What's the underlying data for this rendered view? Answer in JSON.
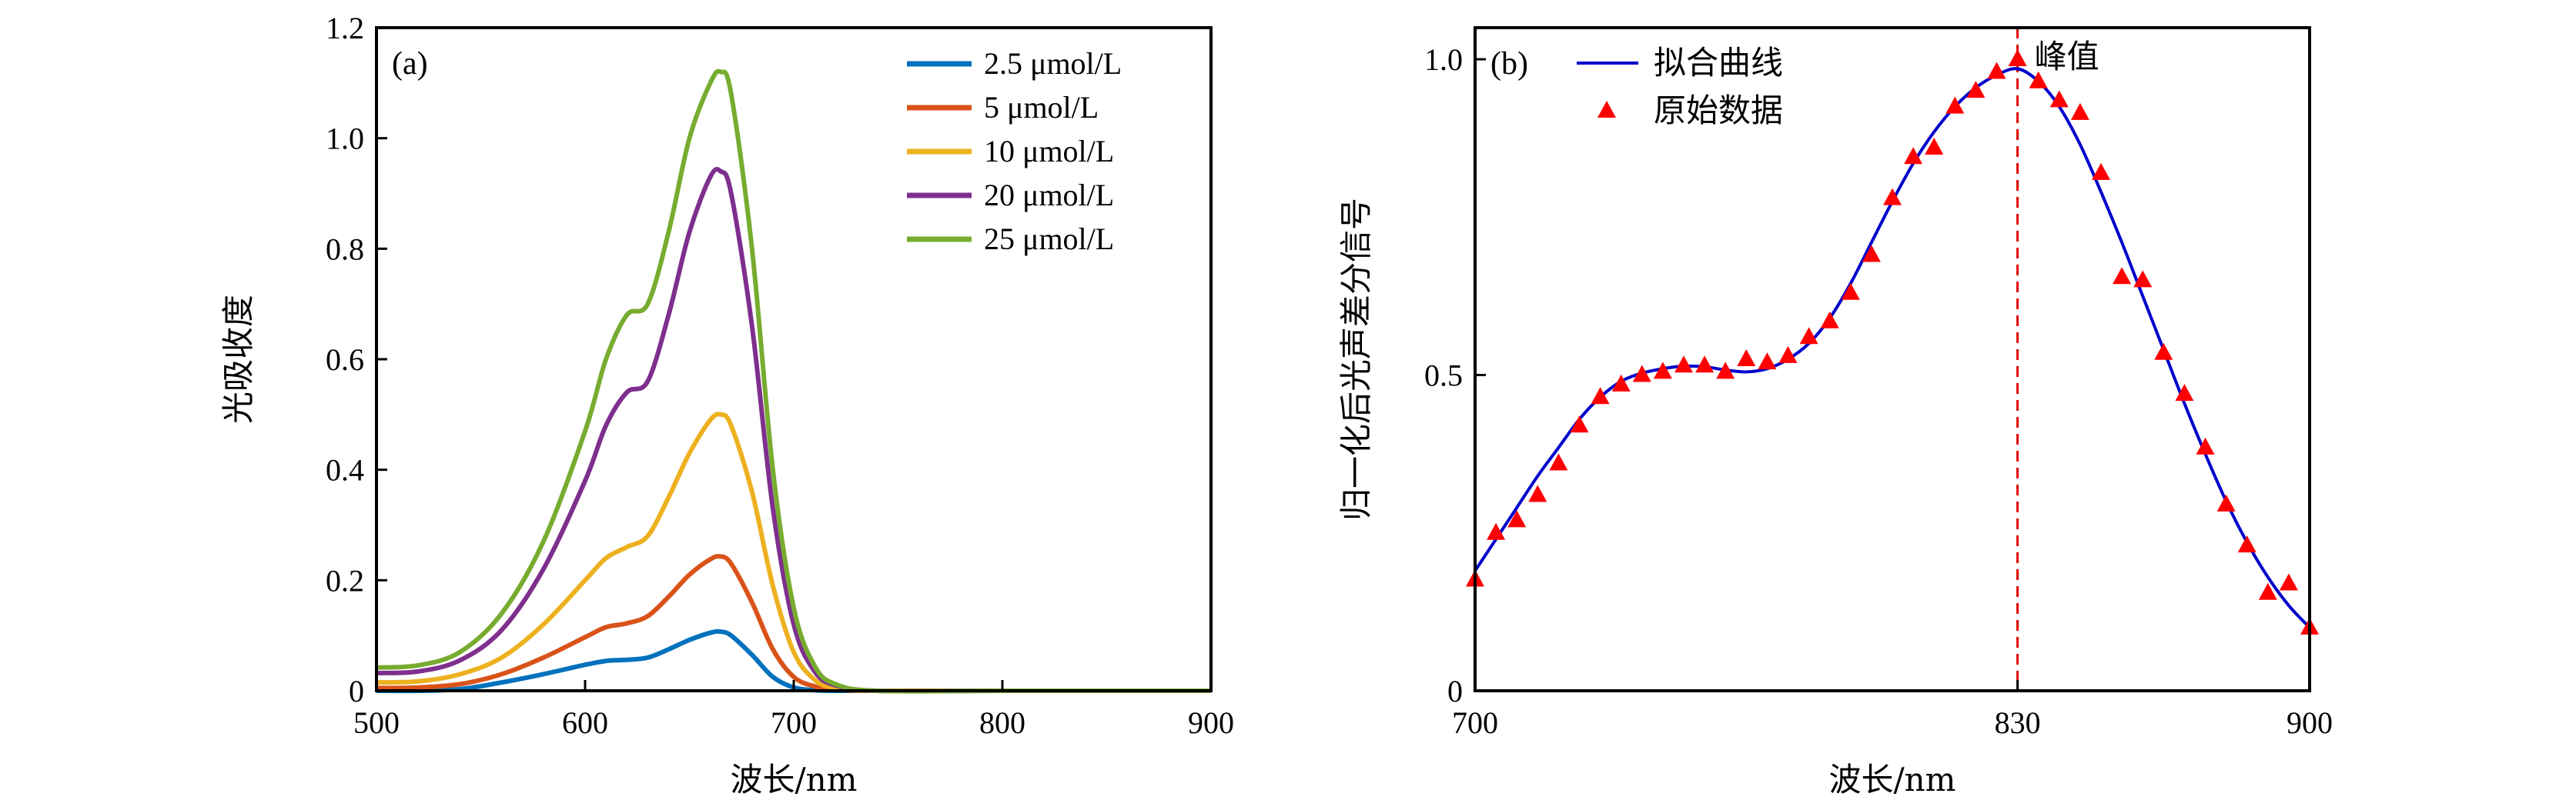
{
  "chart_data": [
    {
      "panel": "(a)",
      "type": "line",
      "xlabel": "波长/nm",
      "ylabel": "光吸收度",
      "xlim": [
        500,
        900
      ],
      "ylim": [
        0,
        1.2
      ],
      "xticks": [
        500,
        600,
        700,
        800,
        900
      ],
      "yticks": [
        0,
        0.2,
        0.4,
        0.6,
        0.8,
        1.0,
        1.2
      ],
      "ytick_labels": [
        "0",
        "0.2",
        "0.4",
        "0.6",
        "0.8",
        "1.0",
        "1.2"
      ],
      "xtick_labels": [
        "500",
        "600",
        "700",
        "800",
        "900"
      ],
      "legend_position": "top-right",
      "x": [
        500,
        520,
        540,
        560,
        580,
        600,
        610,
        620,
        630,
        640,
        650,
        660,
        665,
        670,
        680,
        690,
        700,
        710,
        720,
        740,
        800,
        900
      ],
      "series": [
        {
          "name": "2.5 μmol/L",
          "color": "#0072BD",
          "values": [
            0.0,
            0.0,
            0.003,
            0.015,
            0.03,
            0.047,
            0.054,
            0.056,
            0.06,
            0.075,
            0.092,
            0.105,
            0.107,
            0.1,
            0.065,
            0.025,
            0.006,
            0.001,
            0,
            0,
            0,
            0
          ]
        },
        {
          "name": "5 μmol/L",
          "color": "#D95319",
          "values": [
            0.005,
            0.006,
            0.012,
            0.03,
            0.06,
            0.097,
            0.115,
            0.122,
            0.135,
            0.17,
            0.21,
            0.238,
            0.243,
            0.23,
            0.16,
            0.075,
            0.025,
            0.008,
            0.002,
            0,
            0,
            0
          ]
        },
        {
          "name": "10 μmol/L",
          "color": "#EDB120",
          "values": [
            0.015,
            0.017,
            0.03,
            0.06,
            0.12,
            0.2,
            0.24,
            0.26,
            0.28,
            0.35,
            0.43,
            0.49,
            0.5,
            0.48,
            0.36,
            0.19,
            0.07,
            0.02,
            0.005,
            0,
            0,
            0
          ]
        },
        {
          "name": "20 μmol/L",
          "color": "#7E2F8E",
          "values": [
            0.032,
            0.035,
            0.055,
            0.11,
            0.22,
            0.38,
            0.48,
            0.54,
            0.56,
            0.68,
            0.83,
            0.93,
            0.94,
            0.9,
            0.66,
            0.33,
            0.12,
            0.035,
            0.01,
            0,
            0,
            0
          ]
        },
        {
          "name": "25 μmol/L",
          "color": "#77AC30",
          "values": [
            0.042,
            0.046,
            0.07,
            0.14,
            0.27,
            0.47,
            0.6,
            0.68,
            0.7,
            0.83,
            1.0,
            1.1,
            1.12,
            1.08,
            0.8,
            0.4,
            0.15,
            0.045,
            0.012,
            0,
            0,
            0
          ]
        }
      ]
    },
    {
      "panel": "(b)",
      "type": "scatter",
      "xlabel": "波长/nm",
      "ylabel": "归一化后光声差分信号",
      "xlim": [
        700,
        900
      ],
      "ylim": [
        0,
        1.05
      ],
      "xticks": [
        700,
        830,
        900
      ],
      "xtick_labels": [
        "700",
        "830",
        "900"
      ],
      "yticks": [
        0,
        0.5,
        1.0
      ],
      "ytick_labels": [
        "0",
        "0.5",
        "1.0"
      ],
      "legend_position": "top-left",
      "peak": {
        "x": 830,
        "label": "峰值",
        "color": "#E00000"
      },
      "series": [
        {
          "name": "拟合曲线",
          "kind": "line",
          "color": "#0000CC",
          "x": [
            700,
            705,
            710,
            715,
            720,
            725,
            730,
            735,
            740,
            745,
            750,
            755,
            760,
            765,
            770,
            775,
            780,
            785,
            790,
            795,
            800,
            805,
            810,
            815,
            820,
            825,
            830,
            835,
            840,
            845,
            850,
            855,
            860,
            865,
            870,
            875,
            880,
            885,
            890,
            895,
            900
          ],
          "values": [
            0.19,
            0.24,
            0.29,
            0.34,
            0.385,
            0.43,
            0.465,
            0.49,
            0.503,
            0.51,
            0.514,
            0.513,
            0.508,
            0.505,
            0.51,
            0.525,
            0.55,
            0.59,
            0.645,
            0.71,
            0.775,
            0.835,
            0.885,
            0.925,
            0.955,
            0.975,
            0.985,
            0.965,
            0.925,
            0.865,
            0.79,
            0.71,
            0.625,
            0.54,
            0.455,
            0.375,
            0.3,
            0.235,
            0.18,
            0.135,
            0.1
          ]
        },
        {
          "name": "原始数据",
          "kind": "marker",
          "marker": "triangle",
          "color": "#FF0000",
          "x": [
            700,
            705,
            710,
            715,
            720,
            725,
            730,
            735,
            740,
            745,
            750,
            755,
            760,
            765,
            770,
            775,
            780,
            785,
            790,
            795,
            800,
            805,
            810,
            815,
            820,
            825,
            830,
            835,
            840,
            845,
            850,
            855,
            860,
            865,
            870,
            875,
            880,
            885,
            890,
            895,
            900
          ],
          "values": [
            0.176,
            0.25,
            0.27,
            0.31,
            0.36,
            0.42,
            0.465,
            0.485,
            0.5,
            0.505,
            0.515,
            0.515,
            0.505,
            0.525,
            0.52,
            0.53,
            0.56,
            0.585,
            0.63,
            0.69,
            0.78,
            0.845,
            0.86,
            0.925,
            0.95,
            0.98,
            1.0,
            0.965,
            0.935,
            0.915,
            0.82,
            0.655,
            0.65,
            0.535,
            0.47,
            0.385,
            0.295,
            0.23,
            0.155,
            0.17,
            0.1
          ]
        }
      ]
    }
  ]
}
